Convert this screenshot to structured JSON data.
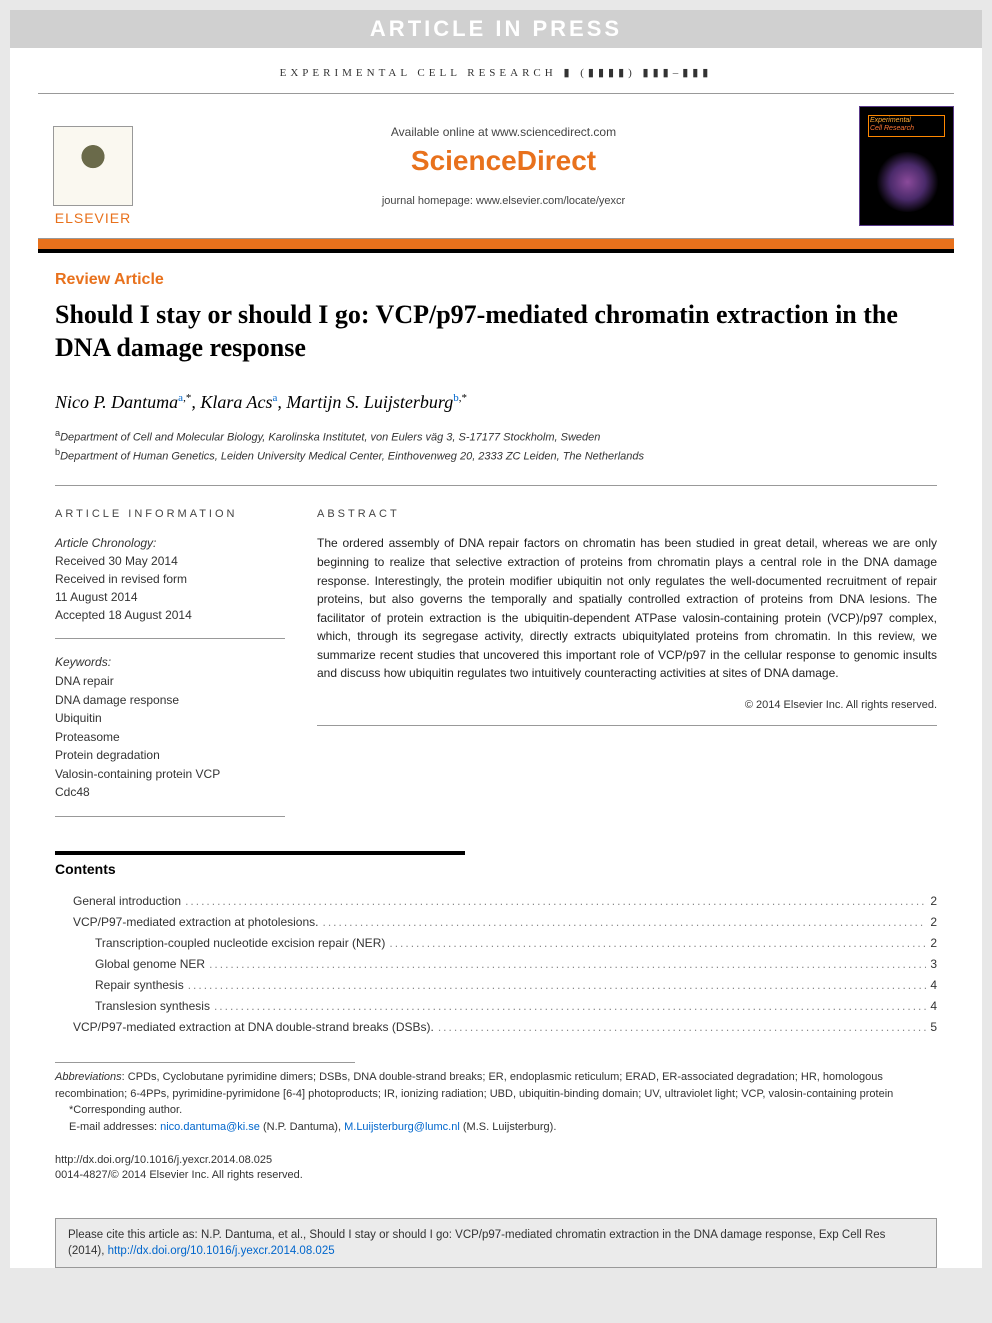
{
  "watermark": "ARTICLE IN PRESS",
  "journal_ref": "EXPERIMENTAL CELL RESEARCH ▮ (▮▮▮▮) ▮▮▮–▮▮▮",
  "header": {
    "elsevier": "ELSEVIER",
    "available": "Available online at www.sciencedirect.com",
    "sciencedirect": "ScienceDirect",
    "homepage": "journal homepage: www.elsevier.com/locate/yexcr",
    "cover_line1": "Experimental",
    "cover_line2": "Cell Research"
  },
  "article_type": "Review Article",
  "title": "Should I stay or should I go: VCP/p97-mediated chromatin extraction in the DNA damage response",
  "authors_html": "Nico P. Dantuma<sup><a>a</a>,*</sup>, Klara Acs<sup><a>a</a></sup>, Martijn S. Luijsterburg<sup><a>b</a>,*</sup>",
  "affiliations": [
    {
      "sup": "a",
      "text": "Department of Cell and Molecular Biology, Karolinska Institutet, von Eulers väg 3, S-17177 Stockholm, Sweden"
    },
    {
      "sup": "b",
      "text": "Department of Human Genetics, Leiden University Medical Center, Einthovenweg 20, 2333 ZC Leiden, The Netherlands"
    }
  ],
  "article_info": {
    "heading": "ARTICLE INFORMATION",
    "chronology_label": "Article Chronology:",
    "received": "Received 30 May 2014",
    "revised1": "Received in revised form",
    "revised2": "11 August 2014",
    "accepted": "Accepted 18 August 2014",
    "keywords_label": "Keywords:",
    "keywords": [
      "DNA repair",
      "DNA damage response",
      "Ubiquitin",
      "Proteasome",
      "Protein degradation",
      "Valosin-containing protein VCP",
      "Cdc48"
    ]
  },
  "abstract": {
    "heading": "ABSTRACT",
    "text": "The ordered assembly of DNA repair factors on chromatin has been studied in great detail, whereas we are only beginning to realize that selective extraction of proteins from chromatin plays a central role in the DNA damage response. Interestingly, the protein modifier ubiquitin not only regulates the well-documented recruitment of repair proteins, but also governs the temporally and spatially controlled extraction of proteins from DNA lesions. The facilitator of protein extraction is the ubiquitin-dependent ATPase valosin-containing protein (VCP)/p97 complex, which, through its segregase activity, directly extracts ubiquitylated proteins from chromatin. In this review, we summarize recent studies that uncovered this important role of VCP/p97 in the cellular response to genomic insults and discuss how ubiquitin regulates two intuitively counteracting activities at sites of DNA damage.",
    "copyright": "© 2014 Elsevier Inc. All rights reserved."
  },
  "contents": {
    "heading": "Contents",
    "items": [
      {
        "level": 1,
        "label": "General introduction",
        "page": "2"
      },
      {
        "level": 1,
        "label": "VCP/P97-mediated extraction at photolesions.",
        "page": "2"
      },
      {
        "level": 2,
        "label": "Transcription-coupled nucleotide excision repair (NER)",
        "page": "2"
      },
      {
        "level": 2,
        "label": "Global genome NER",
        "page": "3"
      },
      {
        "level": 2,
        "label": "Repair synthesis",
        "page": "4"
      },
      {
        "level": 2,
        "label": "Translesion synthesis",
        "page": "4"
      },
      {
        "level": 1,
        "label": "VCP/P97-mediated extraction at DNA double-strand breaks (DSBs).",
        "page": "5"
      }
    ]
  },
  "footnotes": {
    "abbrev_label": "Abbreviations",
    "abbrev_text": ": CPDs, Cyclobutane pyrimidine dimers; DSBs, DNA double-strand breaks; ER, endoplasmic reticulum; ERAD, ER-associated degradation; HR, homologous recombination; 6-4PPs, pyrimidine-pyrimidone [6-4] photoproducts; IR, ionizing radiation; UBD, ubiquitin-binding domain; UV, ultraviolet light; VCP, valosin-containing protein",
    "corresponding": "*Corresponding author.",
    "email_label": "E-mail addresses: ",
    "email1": "nico.dantuma@ki.se",
    "email1_name": " (N.P. Dantuma), ",
    "email2": "M.Luijsterburg@lumc.nl",
    "email2_name": " (M.S. Luijsterburg)."
  },
  "doi": {
    "url": "http://dx.doi.org/10.1016/j.yexcr.2014.08.025",
    "issn": "0014-4827/© 2014 Elsevier Inc. All rights reserved."
  },
  "cite_box": {
    "text": "Please cite this article as: N.P. Dantuma, et al., Should I stay or should I go: VCP/p97-mediated chromatin extraction in the DNA damage response, Exp Cell Res (2014), ",
    "link": "http://dx.doi.org/10.1016/j.yexcr.2014.08.025"
  },
  "colors": {
    "orange": "#e8711c",
    "link": "#0066cc",
    "gray_bg": "#e8e8e8"
  }
}
